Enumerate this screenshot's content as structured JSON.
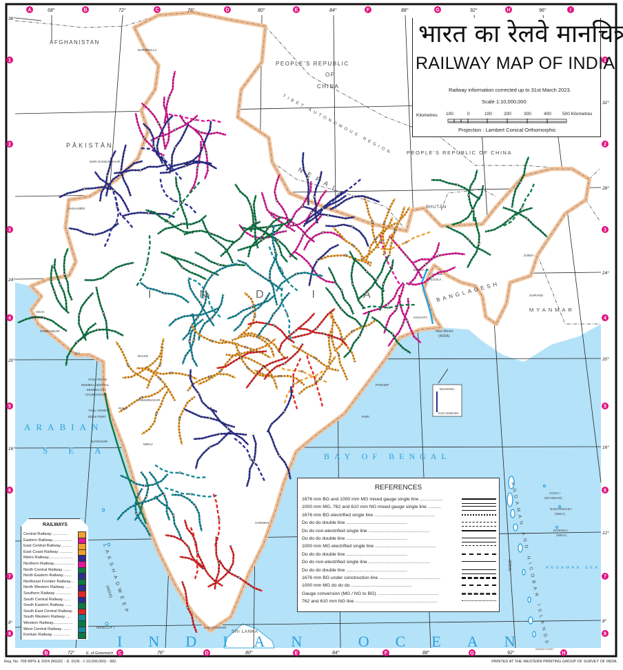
{
  "title": {
    "hindi": "भारत का रेलवे मानचित्र",
    "english": "RAILWAY MAP OF INDIA",
    "info": "Railway information corrected up to 31st March 2023.",
    "scale": "Scale 1:10,000,000",
    "scalebar": {
      "left_label": "Kilometres",
      "ticks": [
        "100",
        "0",
        "100",
        "200",
        "300",
        "400",
        "500 Kilometres"
      ]
    },
    "projection": "Projection : Lambert Conical Orthomorphic"
  },
  "grid": {
    "columns_top": [
      "A",
      "B",
      "C",
      "D",
      "E",
      "F",
      "G",
      "H",
      "I"
    ],
    "columns_bottom": [
      "B",
      "C",
      "D",
      "E",
      "F",
      "G",
      "H"
    ],
    "rows": [
      "1",
      "2",
      "3",
      "4",
      "5",
      "6",
      "7",
      "8"
    ],
    "longitudes_top": [
      "68°",
      "72°",
      "76°",
      "80°",
      "84°",
      "88°",
      "92°",
      "96°"
    ],
    "longitudes_bottom": [
      "72°",
      "76°",
      "80°",
      "84°",
      "88°",
      "92°"
    ],
    "latitudes_left": [
      "36°",
      "24°",
      "20°",
      "16°",
      "8°"
    ],
    "latitudes_right": [
      "32°",
      "28°",
      "24°",
      "20°",
      "16°",
      "12°",
      "8°"
    ],
    "greenwich": "E. of Greenwich",
    "marker_color": "#e0127f"
  },
  "regions": {
    "afghanistan": "AFGHANISTAN",
    "pakistan": "PĀKISTĀN",
    "china_1": "PEOPLE'S REPUBLIC",
    "china_2": "OF",
    "china_3": "CHINA",
    "china_full": "PEOPLE'S REPUBLIC OF CHINA",
    "tibet": "TIBET AUTONOMOUS REGION",
    "nepal": "NEPAL",
    "bhutan": "BHUTĀN",
    "bangladesh": "BANGLADESH",
    "myanmar": "MYANMAR",
    "india": "INDIA",
    "arabian_sea_1": "ARABIAN",
    "arabian_sea_2": "SEA",
    "bay_of_bengal": "BAY OF BENGAL",
    "indian_ocean": "INDIAN OCEAN",
    "andaman_sea": "ANDAMAN SEA",
    "sri_lanka": "SRI LANKA",
    "lakshadweep": "LAKSHADWEEP",
    "lakshadweep_india": "(INDIA)",
    "andaman_nicobar": "ANDAMAN AND NICOBAR ISLANDS",
    "andaman_india": "(INDIA)",
    "minicoy": "MINICOY I",
    "coco": "COCO I",
    "coco_country": "(MYANMAR)",
    "narcondam": "NARCONDAM I",
    "narcondam_country": "(INDIA)",
    "barren": "BARREN I",
    "barren_country": "(INDIA)",
    "new_moore": "New Moore",
    "new_moore_country": "(INDIA)",
    "indira_point": "INDIRA POINT",
    "land_color": "#ffffff",
    "sea_color": "#b4e2f8",
    "india_border_color": "#f2c29a"
  },
  "stations": [
    "OKHA",
    "DWĀRKA",
    "PORBANDAR",
    "DIU",
    "VASAI ROAD",
    "MUMBAI CENTRAL",
    "MUMBAI CST",
    "CHURCHGATE",
    "THĀL VISHET",
    "DIGHI PORT",
    "RATNĀGIRI",
    "DHULE",
    "PUNE",
    "AHMADNAGAR",
    "MIRAJ",
    "LALGOLA",
    "MALDA JN.",
    "ZUBZA",
    "SAIRANG",
    "KANYAKUMARI",
    "JAISALMER",
    "SHRI GANGANAGAR",
    "BARAMULLA",
    "PURI",
    "PARADIP",
    "CHENNAI",
    "KOLKATA"
  ],
  "metro_inset": {
    "top": "NOAPARA",
    "bottom": "KAVI SUBASH"
  },
  "references": {
    "title": "REFERENCES",
    "items": [
      "1676 mm BG and 1000 mm MG mixed gauge single line ..................",
      "1000 mm MG, 762 and 610 mm NG mixed gauge single line ..........",
      "1676 mm BG electrified single line ...............................................",
      "Do        do        do    double line ...............................................",
      "Do    do non-electrified single line ...............................................",
      "Do        do        do    double line ...............................................",
      "1000 mm MG electrified single line ...............................................",
      "Do        do        do    double line ...............................................",
      "Do   do   non-electrified single line ...............................................",
      "Do   do        do    double line ...............................................",
      "1676 mm BG under construction line ...............................................",
      "1000 mm MG      do       do       do ...............................................",
      "Gauge conversion (MG / NG to BG) ...............................................",
      "762 and 610 mm NG line ..............................................................."
    ]
  },
  "railways": {
    "title": "RAILWAYS",
    "items": [
      {
        "name": "Central Railway ..............",
        "color": "#f0a030"
      },
      {
        "name": "Eastern Railway..................",
        "color": "#e0189a"
      },
      {
        "name": "East Central Railway..........",
        "color": "#f0a030"
      },
      {
        "name": "East Coast Railway ............",
        "color": "#f0a030"
      },
      {
        "name": "Metro Railway......................",
        "color": "#2b2f8f"
      },
      {
        "name": "Northern Railway...................",
        "color": "#e0189a"
      },
      {
        "name": "North Central Railway .......",
        "color": "#0b7a45"
      },
      {
        "name": "North Eastern Railway........",
        "color": "#2b2f8f"
      },
      {
        "name": "Northeast Frontier Railway...",
        "color": "#0b7a45"
      },
      {
        "name": "North Western  Railway .....",
        "color": "#2b2f8f"
      },
      {
        "name": "Southern Railway ..............",
        "color": "#e02626"
      },
      {
        "name": "South Central Railway ......",
        "color": "#2b2f8f"
      },
      {
        "name": "South Eastern Railway ......",
        "color": "#0b7a45"
      },
      {
        "name": "South East Central Railway.",
        "color": "#e02626"
      },
      {
        "name": "South Western  Railway ....",
        "color": "#148a9a"
      },
      {
        "name": "Western Railway..................",
        "color": "#0b7a45"
      },
      {
        "name": "West Central Railway .......",
        "color": "#148a9a"
      },
      {
        "name": "Konkan Railway ...............",
        "color": "#0b7a45"
      }
    ]
  },
  "footer": {
    "left": "Reg. No. 708 WPG E  2024 (NGDC - D. DUN - 1:10,000,000) - 982.",
    "right": "PRINTED AT THE WESTERN PRINTING GROUP OF SURVEY OF INDIA."
  }
}
